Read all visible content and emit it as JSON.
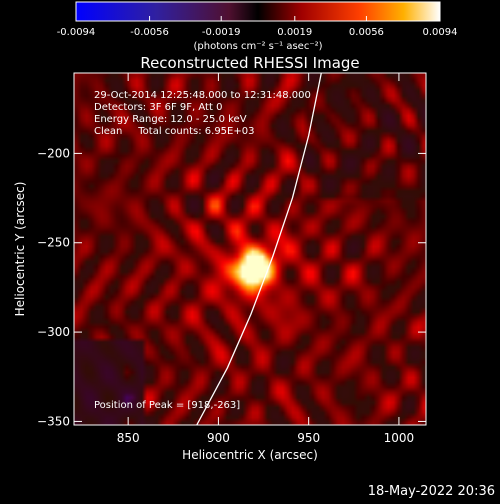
{
  "chart_data": {
    "type": "heatmap",
    "title": "Reconstructed RHESSI Image",
    "xlabel": "Heliocentric X (arcsec)",
    "ylabel": "Heliocentric Y (arcsec)",
    "xlim": [
      820,
      1015
    ],
    "ylim": [
      -352,
      -155
    ],
    "x_ticks": [
      850,
      900,
      950,
      1000
    ],
    "y_ticks": [
      -200,
      -250,
      -300,
      -350
    ],
    "colorbar": {
      "min": -0.0094,
      "max": 0.0094,
      "ticks": [
        "-0.0094",
        "-0.0056",
        "-0.0019",
        "0.0019",
        "0.0056",
        "0.0094"
      ],
      "tick_values": [
        -0.0094,
        -0.0056,
        -0.0019,
        0.0019,
        0.0056,
        0.0094
      ],
      "units": "(photons cm⁻² s⁻¹ asec⁻²)",
      "colormap": "blue-purple-red-yellow-white"
    },
    "annotations": {
      "time_range": "29-Oct-2014 12:25:48.000 to 12:31:48.000",
      "detectors": "Detectors: 3F 6F 9F, Att 0",
      "energy": "Energy Range: 12.0 - 25.0 keV",
      "clean": "Clean     Total counts: 6.95E+03",
      "peak": "Position of Peak = [918,-263]"
    },
    "peak": {
      "x": 918,
      "y": -263
    },
    "limb_curve": [
      [
        888,
        -352
      ],
      [
        905,
        -320
      ],
      [
        918,
        -290
      ],
      [
        930,
        -258
      ],
      [
        941,
        -225
      ],
      [
        950,
        -190
      ],
      [
        957,
        -155
      ]
    ],
    "footer_date": "18-May-2022 20:36"
  },
  "colors": {
    "background": "#000000",
    "text": "#ffffff",
    "limb": "#ffffff"
  }
}
